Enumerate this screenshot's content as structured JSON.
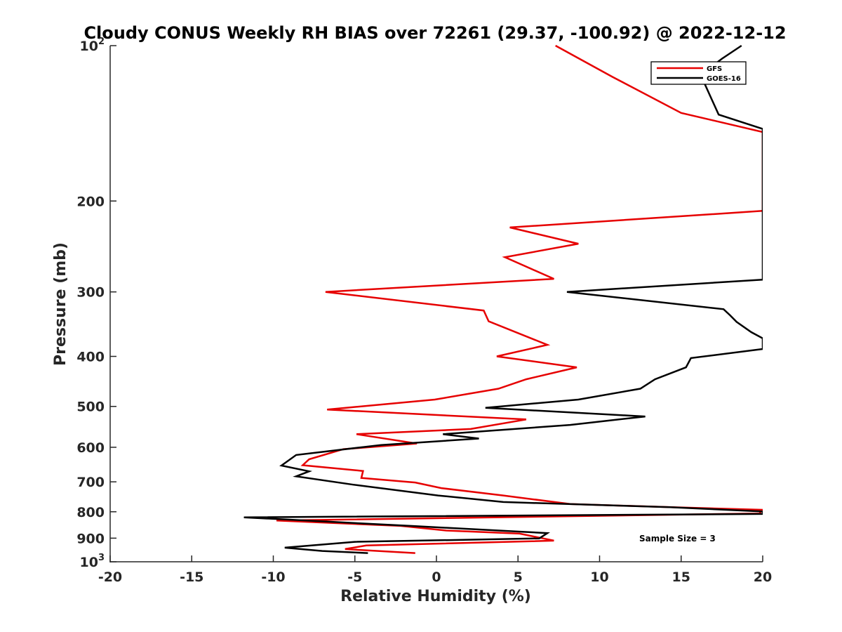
{
  "chart_data": {
    "type": "line",
    "title": "Cloudy CONUS Weekly RH BIAS over 72261 (29.37, -100.92) @ 2022-12-12",
    "xlabel": "Relative Humidity (%)",
    "ylabel": "Pressure (mb)",
    "xlim": [
      -20,
      20
    ],
    "ylim": [
      1000,
      100
    ],
    "yscale": "log",
    "y_reversed": true,
    "grid": false,
    "legend_position": "top-right",
    "xticks": [
      -20,
      -15,
      -10,
      -5,
      0,
      5,
      10,
      15,
      20
    ],
    "xtick_labels": [
      "-20",
      "-15",
      "-10",
      "-5",
      "0",
      "5",
      "10",
      "15",
      "20"
    ],
    "yticks": [
      {
        "value": 100,
        "base": "10",
        "exp": "2"
      },
      {
        "value": 200,
        "label": "200"
      },
      {
        "value": 300,
        "label": "300"
      },
      {
        "value": 400,
        "label": "400"
      },
      {
        "value": 500,
        "label": "500"
      },
      {
        "value": 600,
        "label": "600"
      },
      {
        "value": 700,
        "label": "700"
      },
      {
        "value": 800,
        "label": "800"
      },
      {
        "value": 900,
        "label": "900"
      },
      {
        "value": 1000,
        "base": "10",
        "exp": "3"
      }
    ],
    "series": [
      {
        "name": "GFS",
        "color": "#e60000",
        "points": [
          [
            7.3,
            100
          ],
          [
            10.8,
            115
          ],
          [
            15.0,
            135
          ],
          [
            20.0,
            147
          ],
          [
            20.0,
            209
          ],
          [
            4.5,
            225
          ],
          [
            8.7,
            242
          ],
          [
            4.2,
            257
          ],
          [
            7.2,
            283
          ],
          [
            -6.8,
            300
          ],
          [
            2.9,
            326
          ],
          [
            3.2,
            342
          ],
          [
            6.8,
            380
          ],
          [
            3.7,
            400
          ],
          [
            8.6,
            420
          ],
          [
            5.5,
            443
          ],
          [
            3.8,
            462
          ],
          [
            -0.1,
            485
          ],
          [
            -6.7,
            507
          ],
          [
            5.5,
            530
          ],
          [
            2.1,
            553
          ],
          [
            -4.9,
            566
          ],
          [
            -1.2,
            590
          ],
          [
            -5.7,
            605
          ],
          [
            -7.8,
            633
          ],
          [
            -8.2,
            650
          ],
          [
            -4.5,
            667
          ],
          [
            -4.6,
            688
          ],
          [
            -1.3,
            702
          ],
          [
            0.3,
            720
          ],
          [
            4.1,
            744
          ],
          [
            8.2,
            773
          ],
          [
            14.4,
            784
          ],
          [
            20.0,
            793
          ],
          [
            19.8,
            806
          ],
          [
            -9.8,
            832
          ],
          [
            -2.2,
            852
          ],
          [
            0.6,
            870
          ],
          [
            5.1,
            882
          ],
          [
            7.2,
            910
          ],
          [
            -4.3,
            930
          ],
          [
            -5.6,
            945
          ],
          [
            -1.3,
            962
          ]
        ]
      },
      {
        "name": "GOES-16",
        "color": "#000000",
        "points": [
          [
            18.7,
            100
          ],
          [
            17.5,
            106
          ],
          [
            16.2,
            114
          ],
          [
            17.3,
            136
          ],
          [
            20.0,
            145
          ],
          [
            20.0,
            284
          ],
          [
            8.0,
            300
          ],
          [
            17.6,
            324
          ],
          [
            18.0,
            333
          ],
          [
            18.4,
            343
          ],
          [
            19.3,
            359
          ],
          [
            20.0,
            369
          ],
          [
            20.0,
            387
          ],
          [
            15.6,
            403
          ],
          [
            15.3,
            420
          ],
          [
            13.4,
            443
          ],
          [
            12.5,
            462
          ],
          [
            8.7,
            485
          ],
          [
            3.0,
            503
          ],
          [
            12.8,
            523
          ],
          [
            8.2,
            543
          ],
          [
            0.4,
            566
          ],
          [
            2.6,
            577
          ],
          [
            -3.4,
            594
          ],
          [
            -8.6,
            621
          ],
          [
            -9.5,
            651
          ],
          [
            -7.8,
            668
          ],
          [
            -8.6,
            683
          ],
          [
            -5.1,
            709
          ],
          [
            0.1,
            744
          ],
          [
            4.1,
            766
          ],
          [
            14.3,
            784
          ],
          [
            20.0,
            799
          ],
          [
            20.0,
            808
          ],
          [
            -11.8,
            820
          ],
          [
            -1.6,
            852
          ],
          [
            6.8,
            880
          ],
          [
            6.3,
            901
          ],
          [
            -5.0,
            915
          ],
          [
            -9.3,
            939
          ],
          [
            -7.0,
            953
          ],
          [
            -4.2,
            962
          ]
        ]
      }
    ],
    "annotation": "Sample Size = 3"
  }
}
